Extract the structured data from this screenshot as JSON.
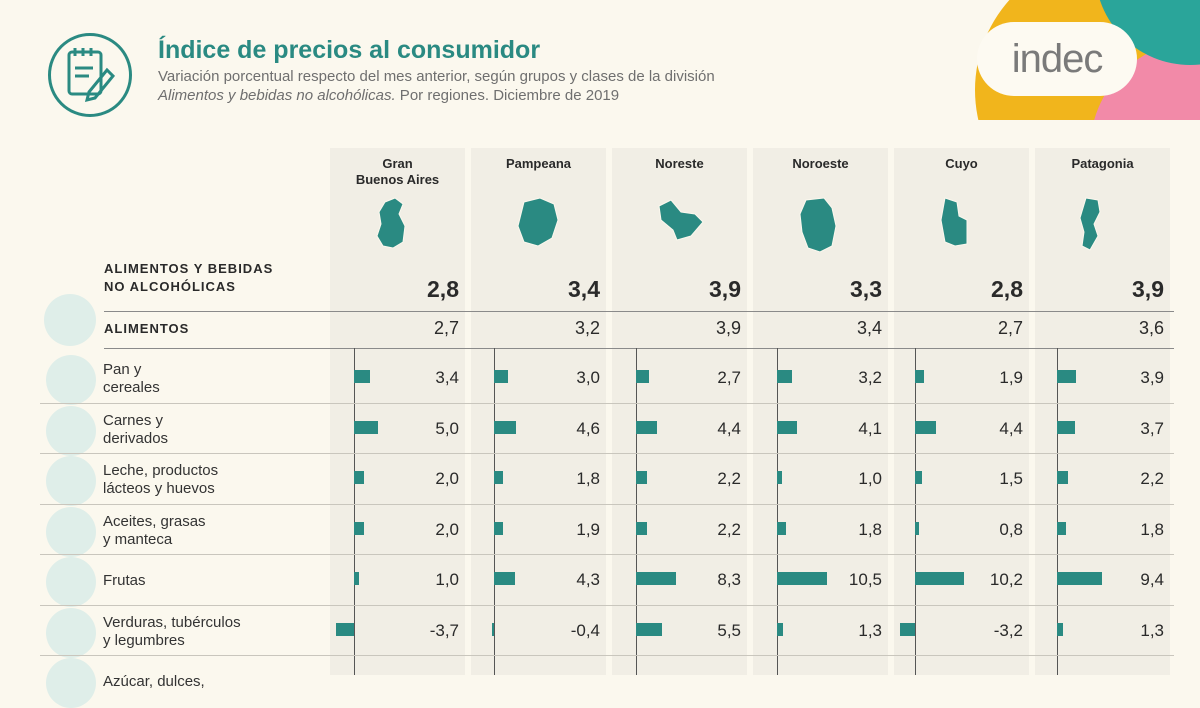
{
  "header": {
    "title": "Índice de precios al consumidor",
    "subtitle_line1": "Variación porcentual respecto del mes anterior, según grupos y clases de la división",
    "subtitle_italic": "Alimentos y bebidas no alcohólicas.",
    "subtitle_rest": " Por regiones. Diciembre de 2019",
    "brand": "indec",
    "brand_colors": [
      "#f1b51c",
      "#f28aa8",
      "#2aa59a"
    ],
    "logo_icon": "notepad-pencil-icon"
  },
  "chart_data": {
    "type": "bar",
    "regions": [
      "Gran\nBuenos Aires",
      "Pampeana",
      "Noreste",
      "Noroeste",
      "Cuyo",
      "Patagonia"
    ],
    "region_maps": [
      "gba-map-icon",
      "pampeana-map-icon",
      "noreste-map-icon",
      "noroeste-map-icon",
      "cuyo-map-icon",
      "patagonia-map-icon"
    ],
    "division": {
      "label": "ALIMENTOS Y BEBIDAS\nNO ALCOHÓLICAS",
      "values": [
        "2,8",
        "3,4",
        "3,9",
        "3,3",
        "2,8",
        "3,9"
      ]
    },
    "group": {
      "label": "ALIMENTOS",
      "values": [
        "2,7",
        "3,2",
        "3,9",
        "3,4",
        "2,7",
        "3,6"
      ]
    },
    "classes": [
      {
        "name": "Pan y\ncereales",
        "icon": "bread-cereal-icon",
        "values": [
          3.4,
          3.0,
          2.7,
          3.2,
          1.9,
          3.9
        ],
        "labels": [
          "3,4",
          "3,0",
          "2,7",
          "3,2",
          "1,9",
          "3,9"
        ]
      },
      {
        "name": "Carnes y\nderivados",
        "icon": "meat-icon",
        "values": [
          5.0,
          4.6,
          4.4,
          4.1,
          4.4,
          3.7
        ],
        "labels": [
          "5,0",
          "4,6",
          "4,4",
          "4,1",
          "4,4",
          "3,7"
        ]
      },
      {
        "name": "Leche, productos\nlácteos y huevos",
        "icon": "milk-eggs-icon",
        "values": [
          2.0,
          1.8,
          2.2,
          1.0,
          1.5,
          2.2
        ],
        "labels": [
          "2,0",
          "1,8",
          "2,2",
          "1,0",
          "1,5",
          "2,2"
        ]
      },
      {
        "name": "Aceites, grasas\ny manteca",
        "icon": "oil-butter-icon",
        "values": [
          2.0,
          1.9,
          2.2,
          1.8,
          0.8,
          1.8
        ],
        "labels": [
          "2,0",
          "1,9",
          "2,2",
          "1,8",
          "0,8",
          "1,8"
        ]
      },
      {
        "name": "Frutas",
        "icon": "banana-icon",
        "values": [
          1.0,
          4.3,
          8.3,
          10.5,
          10.2,
          9.4
        ],
        "labels": [
          "1,0",
          "4,3",
          "8,3",
          "10,5",
          "10,2",
          "9,4"
        ]
      },
      {
        "name": "Verduras, tubérculos\ny legumbres",
        "icon": "vegetables-icon",
        "values": [
          -3.7,
          -0.4,
          5.5,
          1.3,
          -3.2,
          1.3
        ],
        "labels": [
          "-3,7",
          "-0,4",
          "5,5",
          "1,3",
          "-3,2",
          "1,3"
        ]
      },
      {
        "name": "Azúcar, dulces,",
        "icon": "sugar-icon",
        "values": [],
        "labels": []
      }
    ],
    "grid": false
  }
}
